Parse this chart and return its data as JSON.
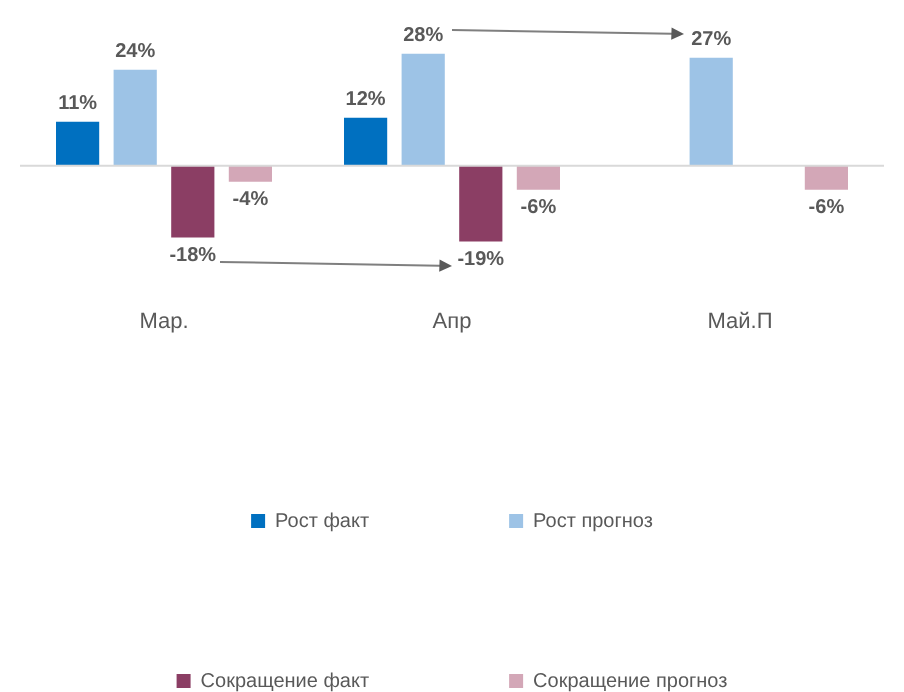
{
  "chart_data": {
    "type": "bar",
    "categories": [
      "Мар.",
      "Апр",
      "Май.П"
    ],
    "series": [
      {
        "name": "Рост факт",
        "color": "#0070c0",
        "values": [
          11,
          12,
          null
        ],
        "value_labels": [
          "11%",
          "12%",
          null
        ]
      },
      {
        "name": "Рост прогноз",
        "color": "#9dc3e6",
        "values": [
          24,
          28,
          27
        ],
        "value_labels": [
          "24%",
          "28%",
          "27%"
        ]
      },
      {
        "name": "Сокращение факт",
        "color": "#8b3e64",
        "values": [
          -18,
          -19,
          null
        ],
        "value_labels": [
          "-18%",
          "-19%",
          null
        ]
      },
      {
        "name": "Сокращение прогноз",
        "color": "#d3a7b7",
        "values": [
          -4,
          -6,
          -6
        ],
        "value_labels": [
          "-4%",
          "-6%",
          "-6%"
        ]
      }
    ],
    "legend": "bottom"
  }
}
